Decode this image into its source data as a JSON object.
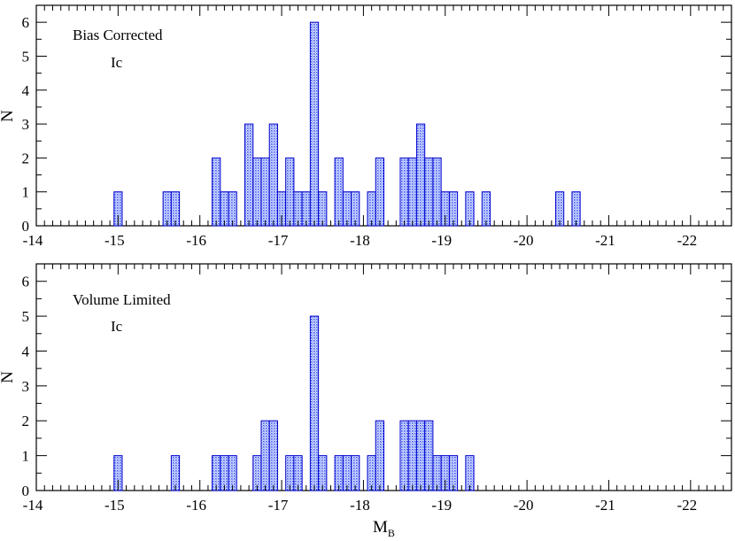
{
  "chart_data": [
    {
      "type": "bar",
      "ylabel": "N",
      "xlabel": "",
      "annotations": [
        "Bias Corrected",
        "Ic"
      ],
      "xlim": [
        -14,
        -22.5
      ],
      "ylim": [
        0,
        6.5
      ],
      "xticks": [
        "-14",
        "-15",
        "-16",
        "-17",
        "-18",
        "-19",
        "-20",
        "-21",
        "-22"
      ],
      "yticks": [
        "0",
        "1",
        "2",
        "3",
        "4",
        "5",
        "6"
      ],
      "bin_width": 0.1,
      "bins": [
        {
          "x": -15.0,
          "n": 1
        },
        {
          "x": -15.6,
          "n": 1
        },
        {
          "x": -15.7,
          "n": 1
        },
        {
          "x": -16.2,
          "n": 2
        },
        {
          "x": -16.3,
          "n": 1
        },
        {
          "x": -16.4,
          "n": 1
        },
        {
          "x": -16.6,
          "n": 3
        },
        {
          "x": -16.7,
          "n": 2
        },
        {
          "x": -16.8,
          "n": 2
        },
        {
          "x": -16.9,
          "n": 3
        },
        {
          "x": -17.0,
          "n": 1
        },
        {
          "x": -17.1,
          "n": 2
        },
        {
          "x": -17.2,
          "n": 1
        },
        {
          "x": -17.3,
          "n": 1
        },
        {
          "x": -17.4,
          "n": 6
        },
        {
          "x": -17.5,
          "n": 1
        },
        {
          "x": -17.7,
          "n": 2
        },
        {
          "x": -17.8,
          "n": 1
        },
        {
          "x": -17.9,
          "n": 1
        },
        {
          "x": -18.1,
          "n": 1
        },
        {
          "x": -18.2,
          "n": 2
        },
        {
          "x": -18.5,
          "n": 2
        },
        {
          "x": -18.6,
          "n": 2
        },
        {
          "x": -18.7,
          "n": 3
        },
        {
          "x": -18.8,
          "n": 2
        },
        {
          "x": -18.9,
          "n": 2
        },
        {
          "x": -19.0,
          "n": 1
        },
        {
          "x": -19.1,
          "n": 1
        },
        {
          "x": -19.3,
          "n": 1
        },
        {
          "x": -19.5,
          "n": 1
        },
        {
          "x": -20.4,
          "n": 1
        },
        {
          "x": -20.6,
          "n": 1
        }
      ]
    },
    {
      "type": "bar",
      "ylabel": "N",
      "xlabel": "M_B",
      "annotations": [
        "Volume Limited",
        "Ic"
      ],
      "xlim": [
        -14,
        -22.5
      ],
      "ylim": [
        0,
        6.5
      ],
      "xticks": [
        "-14",
        "-15",
        "-16",
        "-17",
        "-18",
        "-19",
        "-20",
        "-21",
        "-22"
      ],
      "yticks": [
        "0",
        "1",
        "2",
        "3",
        "4",
        "5",
        "6"
      ],
      "bin_width": 0.1,
      "bins": [
        {
          "x": -15.0,
          "n": 1
        },
        {
          "x": -15.7,
          "n": 1
        },
        {
          "x": -16.2,
          "n": 1
        },
        {
          "x": -16.3,
          "n": 1
        },
        {
          "x": -16.4,
          "n": 1
        },
        {
          "x": -16.7,
          "n": 1
        },
        {
          "x": -16.8,
          "n": 2
        },
        {
          "x": -16.9,
          "n": 2
        },
        {
          "x": -17.1,
          "n": 1
        },
        {
          "x": -17.2,
          "n": 1
        },
        {
          "x": -17.4,
          "n": 5
        },
        {
          "x": -17.5,
          "n": 1
        },
        {
          "x": -17.7,
          "n": 1
        },
        {
          "x": -17.8,
          "n": 1
        },
        {
          "x": -17.9,
          "n": 1
        },
        {
          "x": -18.1,
          "n": 1
        },
        {
          "x": -18.2,
          "n": 2
        },
        {
          "x": -18.5,
          "n": 2
        },
        {
          "x": -18.6,
          "n": 2
        },
        {
          "x": -18.7,
          "n": 2
        },
        {
          "x": -18.8,
          "n": 2
        },
        {
          "x": -18.9,
          "n": 1
        },
        {
          "x": -19.0,
          "n": 1
        },
        {
          "x": -19.1,
          "n": 1
        },
        {
          "x": -19.3,
          "n": 1
        }
      ]
    }
  ],
  "colors": {
    "bar_edge": "#0000cc",
    "bar_fill": "#3d5cf2"
  }
}
